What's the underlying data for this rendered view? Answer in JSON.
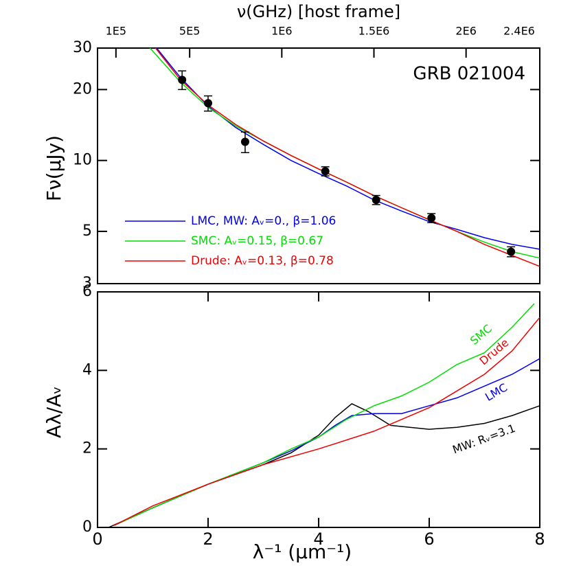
{
  "chart_data": [
    {
      "type": "line",
      "title": "GRB 021004",
      "ylabel": "Fν(μJy)",
      "x2label": "ν(GHz) [host frame]",
      "xlim": [
        0,
        8
      ],
      "ylim": [
        3,
        30
      ],
      "log_y": true,
      "yticks": [
        3,
        5,
        10,
        20,
        30
      ],
      "x2lim": [
        0,
        2400000
      ],
      "x2ticks": [
        {
          "value": 100000,
          "label": "1E5"
        },
        {
          "value": 500000,
          "label": "5E5"
        },
        {
          "value": 1000000,
          "label": "1E6"
        },
        {
          "value": 1500000,
          "label": "1.5E6"
        },
        {
          "value": 2000000,
          "label": "2E6"
        },
        {
          "value": 2400000,
          "label": "2.4E6"
        }
      ],
      "series": [
        {
          "name": "LMC, MW: Aᵥ=0., β=1.06",
          "color": "#0000ee",
          "x": [
            1.07,
            1.5,
            2,
            2.5,
            3,
            3.5,
            4,
            4.5,
            5,
            5.5,
            6,
            6.5,
            7,
            7.5,
            8
          ],
          "values": [
            30,
            22.5,
            17,
            13.8,
            11.7,
            10,
            8.8,
            7.8,
            6.8,
            6.1,
            5.5,
            5.1,
            4.7,
            4.4,
            4.2
          ]
        },
        {
          "name": "SMC: Aᵥ=0.15, β=0.67",
          "color": "#00dd00",
          "x": [
            0.95,
            1.5,
            2,
            2.5,
            3,
            3.5,
            4,
            4.5,
            5,
            5.5,
            6,
            6.5,
            7,
            7.5,
            8
          ],
          "values": [
            30,
            21.5,
            16.8,
            14,
            12.1,
            10.5,
            9.2,
            8.1,
            7.1,
            6.3,
            5.6,
            5.0,
            4.5,
            4.1,
            3.85
          ]
        },
        {
          "name": "Drude: Aᵥ=0.13, β=0.78",
          "color": "#ee0000",
          "x": [
            1.05,
            1.5,
            2,
            2.5,
            3,
            3.5,
            4,
            4.5,
            5,
            5.5,
            6,
            6.5,
            7,
            7.5,
            8
          ],
          "values": [
            30,
            22,
            17.2,
            14.2,
            12.1,
            10.5,
            9.2,
            8.1,
            7.1,
            6.3,
            5.6,
            5.0,
            4.4,
            3.95,
            3.55
          ]
        }
      ],
      "points": {
        "color": "#000000",
        "x": [
          1.53,
          2.0,
          2.67,
          4.12,
          5.04,
          6.04,
          7.48
        ],
        "values": [
          22,
          17.5,
          12,
          9,
          6.8,
          5.7,
          4.1
        ],
        "errors": [
          2,
          1.3,
          1.2,
          0.4,
          0.3,
          0.25,
          0.2
        ]
      }
    },
    {
      "type": "line",
      "xlabel": "λ⁻¹   (μm⁻¹)",
      "ylabel": "Aλ/Aᵥ",
      "xlim": [
        0,
        8
      ],
      "xticks": [
        0,
        2,
        4,
        6,
        8
      ],
      "ylim": [
        0,
        6
      ],
      "yticks": [
        0,
        2,
        4,
        6
      ],
      "series": [
        {
          "name": "MW: Rᵥ=3.1",
          "color": "#000000",
          "x": [
            0.2,
            1,
            2,
            3,
            3.5,
            4,
            4.3,
            4.6,
            4.9,
            5.3,
            6,
            6.5,
            7,
            7.5,
            8
          ],
          "values": [
            0,
            0.5,
            1.1,
            1.6,
            1.9,
            2.35,
            2.8,
            3.15,
            2.95,
            2.6,
            2.5,
            2.55,
            2.65,
            2.85,
            3.1
          ]
        },
        {
          "name": "LMC",
          "color": "#0000ee",
          "x": [
            0.3,
            1,
            2,
            3,
            3.5,
            4,
            4.3,
            4.6,
            5,
            5.5,
            6,
            6.5,
            7,
            7.5,
            8
          ],
          "values": [
            0.05,
            0.5,
            1.1,
            1.65,
            1.95,
            2.3,
            2.6,
            2.85,
            2.9,
            2.9,
            3.1,
            3.3,
            3.6,
            3.9,
            4.3
          ]
        },
        {
          "name": "SMC",
          "color": "#00dd00",
          "x": [
            0.3,
            1,
            2,
            3,
            3.5,
            4,
            4.5,
            5,
            5.5,
            6,
            6.5,
            7,
            7.5,
            7.9
          ],
          "values": [
            0.05,
            0.5,
            1.1,
            1.65,
            2.0,
            2.3,
            2.75,
            3.1,
            3.35,
            3.7,
            4.15,
            4.45,
            5.1,
            5.7
          ]
        },
        {
          "name": "Drude",
          "color": "#ee0000",
          "x": [
            0.3,
            1,
            2,
            3,
            4,
            5,
            6,
            7,
            7.5,
            8
          ],
          "values": [
            0.05,
            0.55,
            1.1,
            1.6,
            2.0,
            2.45,
            3.05,
            3.9,
            4.5,
            5.35
          ]
        }
      ]
    }
  ]
}
